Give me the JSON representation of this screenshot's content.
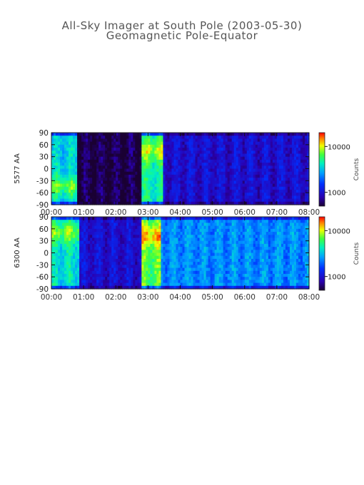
{
  "title": "All-Sky Imager at South Pole (2003-05-30)",
  "subtitle": "Geomagnetic Pole-Equator",
  "chart_data": [
    {
      "type": "heatmap",
      "ylabel": "5577 AA",
      "x_ticks": [
        "00:00",
        "01:00",
        "02:00",
        "03:00",
        "04:00",
        "05:00",
        "06:00",
        "07:00",
        "08:00"
      ],
      "x_range_hours": [
        0,
        8
      ],
      "y_ticks": [
        90,
        60,
        30,
        0,
        -30,
        -60,
        -90
      ],
      "ylim": [
        -90,
        90
      ],
      "colorbar": {
        "label": "Counts",
        "ticks": [
          10000,
          1000
        ],
        "scale": "log",
        "range": [
          500,
          20000
        ]
      },
      "features": [
        {
          "start_h": 0.0,
          "end_h": 0.82,
          "level": 0.52,
          "peak_lat": -45,
          "note": "band"
        },
        {
          "start_h": 0.82,
          "end_h": 2.8,
          "level": 0.02
        },
        {
          "start_h": 2.8,
          "end_h": 3.5,
          "level": 0.6,
          "peak_lat": 45
        },
        {
          "start_h": 3.5,
          "end_h": 8.0,
          "level": 0.18
        }
      ]
    },
    {
      "type": "heatmap",
      "ylabel": "6300 AA",
      "x_ticks": [
        "00:00",
        "01:00",
        "02:00",
        "03:00",
        "04:00",
        "05:00",
        "06:00",
        "07:00",
        "08:00"
      ],
      "x_range_hours": [
        0,
        8
      ],
      "y_ticks": [
        90,
        60,
        30,
        0,
        -30,
        -60,
        -90
      ],
      "ylim": [
        -90,
        90
      ],
      "colorbar": {
        "label": "Counts",
        "ticks": [
          10000,
          1000
        ],
        "scale": "log",
        "range": [
          500,
          20000
        ]
      },
      "features": [
        {
          "start_h": 0.0,
          "end_h": 0.9,
          "level": 0.55,
          "peak_lat": 50
        },
        {
          "start_h": 0.9,
          "end_h": 2.8,
          "level": 0.18
        },
        {
          "start_h": 2.8,
          "end_h": 3.4,
          "level": 0.7,
          "peak_lat": 40
        },
        {
          "start_h": 3.4,
          "end_h": 8.0,
          "level": 0.42
        }
      ]
    }
  ]
}
